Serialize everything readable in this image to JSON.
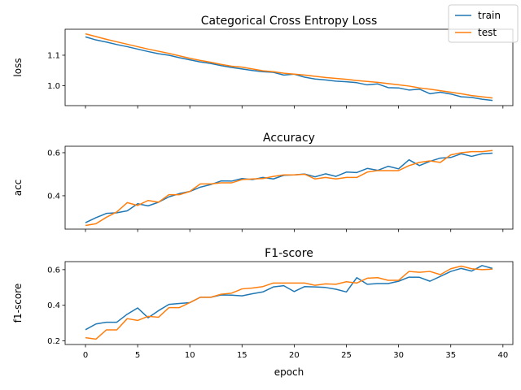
{
  "chart_data": {
    "type": "line",
    "xlabel": "epoch",
    "x": [
      0,
      1,
      2,
      3,
      4,
      5,
      6,
      7,
      8,
      9,
      10,
      11,
      12,
      13,
      14,
      15,
      16,
      17,
      18,
      19,
      20,
      21,
      22,
      23,
      24,
      25,
      26,
      27,
      28,
      29,
      30,
      31,
      32,
      33,
      34,
      35,
      36,
      37,
      38,
      39
    ],
    "xticks": [
      0,
      5,
      10,
      15,
      20,
      25,
      30,
      35,
      40
    ],
    "xlim": [
      -1.95,
      40.95
    ],
    "legend": {
      "placement": "top-right",
      "entries": [
        {
          "name": "train",
          "color": "#1f77b4"
        },
        {
          "name": "test",
          "color": "#ff7f0e"
        }
      ]
    },
    "panels": [
      {
        "title": "Categorical Cross Entropy Loss",
        "ylabel": "loss",
        "ylim": [
          0.935,
          1.185
        ],
        "yticks": [
          1.0,
          1.1
        ],
        "series": [
          {
            "name": "train",
            "color": "#1f77b4",
            "values": [
              1.16,
              1.15,
              1.143,
              1.135,
              1.128,
              1.12,
              1.112,
              1.105,
              1.1,
              1.092,
              1.085,
              1.078,
              1.073,
              1.066,
              1.06,
              1.055,
              1.05,
              1.046,
              1.044,
              1.035,
              1.038,
              1.028,
              1.022,
              1.019,
              1.015,
              1.013,
              1.01,
              1.003,
              1.006,
              0.994,
              0.993,
              0.986,
              0.989,
              0.974,
              0.979,
              0.973,
              0.964,
              0.962,
              0.956,
              0.952
            ]
          },
          {
            "name": "test",
            "color": "#ff7f0e",
            "values": [
              1.17,
              1.161,
              1.152,
              1.144,
              1.136,
              1.128,
              1.12,
              1.113,
              1.106,
              1.098,
              1.09,
              1.083,
              1.077,
              1.07,
              1.064,
              1.061,
              1.055,
              1.049,
              1.046,
              1.041,
              1.038,
              1.035,
              1.031,
              1.027,
              1.024,
              1.021,
              1.017,
              1.014,
              1.011,
              1.007,
              1.003,
              0.999,
              0.993,
              0.989,
              0.984,
              0.979,
              0.974,
              0.968,
              0.964,
              0.96
            ]
          }
        ]
      },
      {
        "title": "Accuracy",
        "ylabel": "acc",
        "ylim": [
          0.245,
          0.63
        ],
        "yticks": [
          0.4,
          0.6
        ],
        "series": [
          {
            "name": "train",
            "color": "#1f77b4",
            "values": [
              0.275,
              0.298,
              0.318,
              0.321,
              0.33,
              0.363,
              0.353,
              0.37,
              0.395,
              0.41,
              0.42,
              0.44,
              0.452,
              0.469,
              0.468,
              0.48,
              0.475,
              0.485,
              0.478,
              0.495,
              0.497,
              0.501,
              0.488,
              0.502,
              0.49,
              0.51,
              0.508,
              0.527,
              0.518,
              0.537,
              0.525,
              0.567,
              0.54,
              0.56,
              0.575,
              0.578,
              0.595,
              0.583,
              0.595,
              0.598
            ]
          },
          {
            "name": "test",
            "color": "#ff7f0e",
            "values": [
              0.262,
              0.27,
              0.3,
              0.325,
              0.368,
              0.355,
              0.378,
              0.37,
              0.405,
              0.405,
              0.42,
              0.455,
              0.455,
              0.46,
              0.46,
              0.475,
              0.478,
              0.48,
              0.49,
              0.497,
              0.497,
              0.5,
              0.478,
              0.485,
              0.478,
              0.485,
              0.485,
              0.51,
              0.517,
              0.517,
              0.517,
              0.54,
              0.555,
              0.562,
              0.555,
              0.59,
              0.6,
              0.605,
              0.605,
              0.61
            ]
          }
        ]
      },
      {
        "title": "F1-score",
        "ylabel": "f1-score",
        "ylim": [
          0.18,
          0.645
        ],
        "yticks": [
          0.2,
          0.4,
          0.6
        ],
        "series": [
          {
            "name": "train",
            "color": "#1f77b4",
            "values": [
              0.263,
              0.295,
              0.305,
              0.305,
              0.35,
              0.385,
              0.33,
              0.37,
              0.405,
              0.41,
              0.415,
              0.445,
              0.445,
              0.458,
              0.457,
              0.453,
              0.465,
              0.475,
              0.503,
              0.51,
              0.477,
              0.505,
              0.503,
              0.5,
              0.49,
              0.475,
              0.555,
              0.518,
              0.522,
              0.522,
              0.535,
              0.558,
              0.557,
              0.535,
              0.562,
              0.59,
              0.607,
              0.592,
              0.623,
              0.607
            ]
          },
          {
            "name": "test",
            "color": "#ff7f0e",
            "values": [
              0.218,
              0.21,
              0.262,
              0.262,
              0.325,
              0.315,
              0.338,
              0.333,
              0.387,
              0.387,
              0.415,
              0.445,
              0.445,
              0.462,
              0.468,
              0.492,
              0.497,
              0.505,
              0.525,
              0.525,
              0.525,
              0.525,
              0.512,
              0.52,
              0.518,
              0.532,
              0.525,
              0.552,
              0.555,
              0.54,
              0.54,
              0.59,
              0.585,
              0.59,
              0.572,
              0.605,
              0.62,
              0.605,
              0.6,
              0.603
            ]
          }
        ]
      }
    ]
  }
}
